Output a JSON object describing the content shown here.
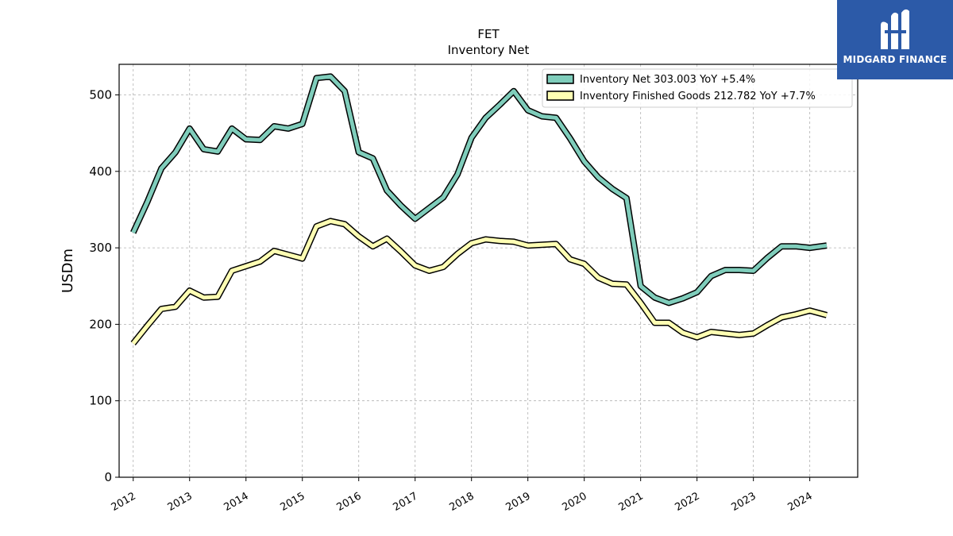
{
  "chart_data": {
    "type": "line",
    "title": "FET",
    "subtitle": "Inventory Net",
    "xlabel": "",
    "ylabel": "USDm",
    "ylim": [
      0,
      540
    ],
    "yticks": [
      0,
      100,
      200,
      300,
      400,
      500
    ],
    "xlim": [
      2011.75,
      2024.85
    ],
    "xticks": [
      "2012",
      "2013",
      "2014",
      "2015",
      "2016",
      "2017",
      "2018",
      "2019",
      "2020",
      "2021",
      "2022",
      "2023",
      "2024"
    ],
    "grid": true,
    "legend_position": "top-right",
    "series": [
      {
        "name": "Inventory Net  303.003 YoY +5.4%",
        "color": "#7fcdbb",
        "points": [
          [
            2012.0,
            320
          ],
          [
            2012.25,
            360
          ],
          [
            2012.5,
            404
          ],
          [
            2012.75,
            425
          ],
          [
            2013.0,
            456
          ],
          [
            2013.25,
            429
          ],
          [
            2013.5,
            426
          ],
          [
            2013.75,
            456
          ],
          [
            2014.0,
            442
          ],
          [
            2014.25,
            441
          ],
          [
            2014.5,
            459
          ],
          [
            2014.75,
            456
          ],
          [
            2015.0,
            462
          ],
          [
            2015.25,
            522
          ],
          [
            2015.5,
            524
          ],
          [
            2015.75,
            505
          ],
          [
            2016.0,
            425
          ],
          [
            2016.25,
            417
          ],
          [
            2016.5,
            375
          ],
          [
            2016.75,
            355
          ],
          [
            2017.0,
            338
          ],
          [
            2017.25,
            352
          ],
          [
            2017.5,
            366
          ],
          [
            2017.75,
            396
          ],
          [
            2018.0,
            444
          ],
          [
            2018.25,
            470
          ],
          [
            2018.5,
            487
          ],
          [
            2018.75,
            505
          ],
          [
            2019.0,
            480
          ],
          [
            2019.25,
            472
          ],
          [
            2019.5,
            470
          ],
          [
            2019.75,
            443
          ],
          [
            2020.0,
            413
          ],
          [
            2020.25,
            392
          ],
          [
            2020.5,
            377
          ],
          [
            2020.75,
            365
          ],
          [
            2021.0,
            250
          ],
          [
            2021.25,
            235
          ],
          [
            2021.5,
            228
          ],
          [
            2021.75,
            234
          ],
          [
            2022.0,
            242
          ],
          [
            2022.25,
            263
          ],
          [
            2022.5,
            271
          ],
          [
            2022.75,
            271
          ],
          [
            2023.0,
            270
          ],
          [
            2023.25,
            287
          ],
          [
            2023.5,
            302
          ],
          [
            2023.75,
            302
          ],
          [
            2024.0,
            300
          ],
          [
            2024.3,
            303
          ]
        ]
      },
      {
        "name": "Inventory Finished Goods  212.782 YoY +7.7%",
        "color": "#ffffb3",
        "points": [
          [
            2012.0,
            175
          ],
          [
            2012.25,
            198
          ],
          [
            2012.5,
            220
          ],
          [
            2012.75,
            223
          ],
          [
            2013.0,
            244
          ],
          [
            2013.25,
            235
          ],
          [
            2013.5,
            236
          ],
          [
            2013.75,
            270
          ],
          [
            2014.0,
            276
          ],
          [
            2014.25,
            282
          ],
          [
            2014.5,
            296
          ],
          [
            2014.75,
            291
          ],
          [
            2015.0,
            286
          ],
          [
            2015.25,
            328
          ],
          [
            2015.5,
            335
          ],
          [
            2015.75,
            331
          ],
          [
            2016.0,
            315
          ],
          [
            2016.25,
            302
          ],
          [
            2016.5,
            312
          ],
          [
            2016.75,
            295
          ],
          [
            2017.0,
            277
          ],
          [
            2017.25,
            270
          ],
          [
            2017.5,
            275
          ],
          [
            2017.75,
            292
          ],
          [
            2018.0,
            306
          ],
          [
            2018.25,
            311
          ],
          [
            2018.5,
            309
          ],
          [
            2018.75,
            308
          ],
          [
            2019.0,
            303
          ],
          [
            2019.25,
            304
          ],
          [
            2019.5,
            305
          ],
          [
            2019.75,
            285
          ],
          [
            2020.0,
            279
          ],
          [
            2020.25,
            261
          ],
          [
            2020.5,
            253
          ],
          [
            2020.75,
            252
          ],
          [
            2021.0,
            228
          ],
          [
            2021.25,
            202
          ],
          [
            2021.5,
            202
          ],
          [
            2021.75,
            189
          ],
          [
            2022.0,
            183
          ],
          [
            2022.25,
            190
          ],
          [
            2022.5,
            188
          ],
          [
            2022.75,
            186
          ],
          [
            2023.0,
            188
          ],
          [
            2023.25,
            199
          ],
          [
            2023.5,
            209
          ],
          [
            2023.75,
            213
          ],
          [
            2024.0,
            218
          ],
          [
            2024.3,
            212
          ]
        ]
      }
    ]
  },
  "logo": {
    "text": "MIDGARD FINANCE",
    "background": "#2c5aa8"
  }
}
